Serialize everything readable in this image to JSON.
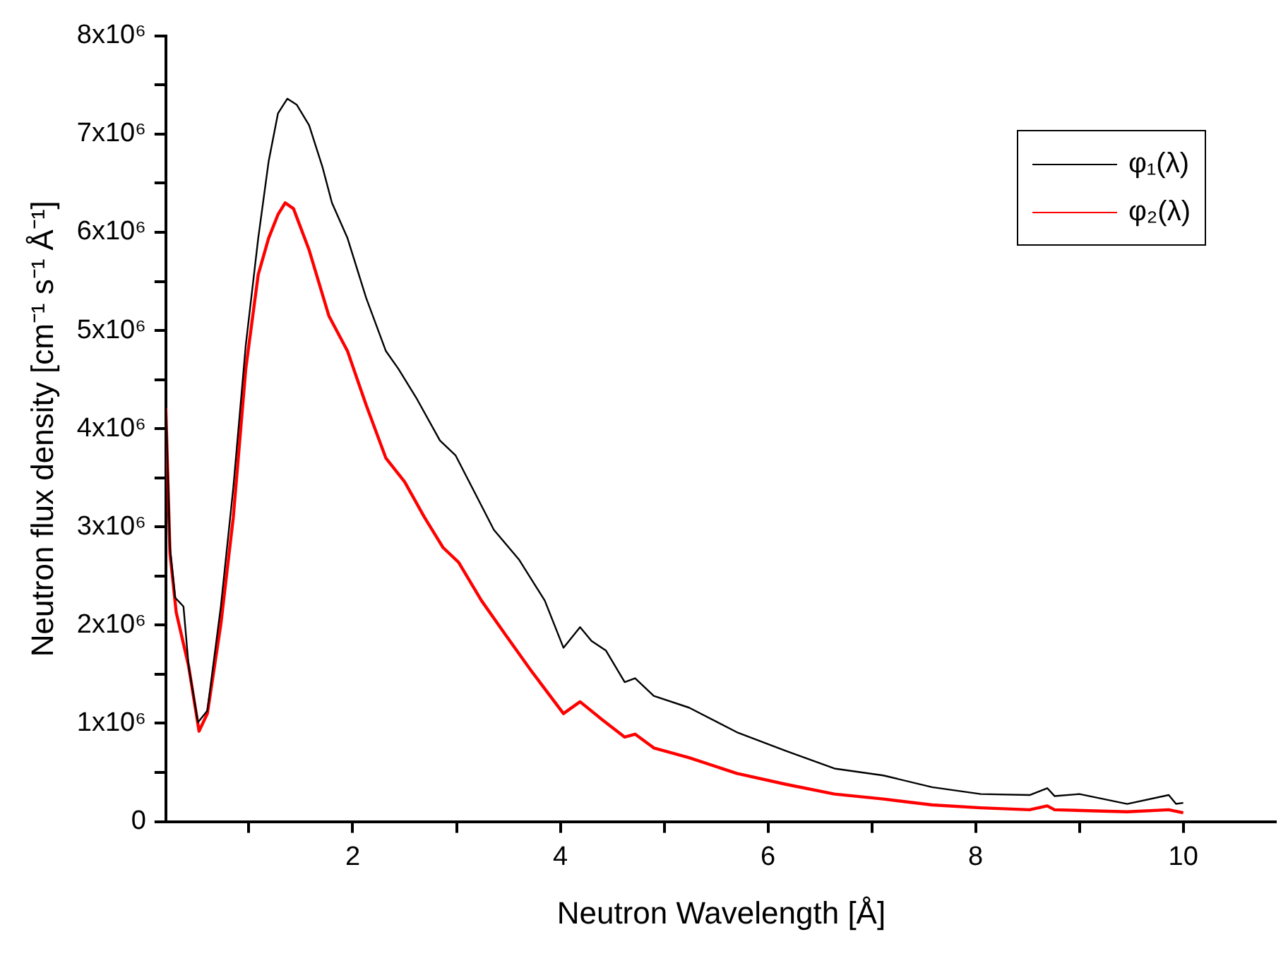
{
  "chart_data": {
    "type": "line",
    "xlabel": "Neutron Wavelength [Å]",
    "ylabel": "Neutron flux density [cm⁻¹ s⁻¹ Å⁻¹]",
    "xlim": [
      0.2,
      10.9
    ],
    "xticks": [
      {
        "value": 1,
        "label": null
      },
      2,
      {
        "value": 3,
        "label": null
      },
      4,
      {
        "value": 5,
        "label": null
      },
      6,
      {
        "value": 7,
        "label": null
      },
      8,
      {
        "value": 9,
        "label": null
      },
      10
    ],
    "ylim": [
      0,
      8000000
    ],
    "yticks": [
      {
        "value": 0,
        "label": "0"
      },
      {
        "value": 500000,
        "label": null
      },
      {
        "value": 1000000,
        "label": "1x10⁶"
      },
      {
        "value": 1500000,
        "label": null
      },
      {
        "value": 2000000,
        "label": "2x10⁶"
      },
      {
        "value": 2500000,
        "label": null
      },
      {
        "value": 3000000,
        "label": "3x10⁶"
      },
      {
        "value": 3500000,
        "label": null
      },
      {
        "value": 4000000,
        "label": "4x10⁶"
      },
      {
        "value": 4500000,
        "label": null
      },
      {
        "value": 5000000,
        "label": "5x10⁶"
      },
      {
        "value": 5500000,
        "label": null
      },
      {
        "value": 6000000,
        "label": "6x10⁶"
      },
      {
        "value": 6500000,
        "label": null
      },
      {
        "value": 7000000,
        "label": "7x10⁶"
      },
      {
        "value": 7500000,
        "label": null
      },
      {
        "value": 8000000,
        "label": "8x10⁶"
      }
    ],
    "grid": false,
    "legend": "top right",
    "marker": "none",
    "line_style": "solid",
    "series": [
      {
        "name": "φ₁(λ)",
        "color": "#000000",
        "x": [
          0.2,
          0.24,
          0.29,
          0.37,
          0.42,
          0.51,
          0.6,
          0.73,
          0.85,
          0.97,
          1.09,
          1.19,
          1.28,
          1.37,
          1.46,
          1.58,
          1.71,
          1.8,
          1.95,
          2.13,
          2.32,
          2.44,
          2.62,
          2.84,
          2.99,
          3.18,
          3.36,
          3.6,
          3.85,
          4.03,
          4.19,
          4.3,
          4.44,
          4.62,
          4.72,
          4.9,
          5.24,
          5.7,
          6.17,
          6.64,
          7.11,
          7.58,
          8.05,
          8.52,
          8.69,
          8.76,
          9.0,
          9.46,
          9.86,
          9.93,
          10.0
        ],
        "values": [
          4240000,
          2790000,
          2280000,
          2190000,
          1580000,
          1010000,
          1130000,
          2190000,
          3400000,
          4850000,
          5940000,
          6720000,
          7210000,
          7360000,
          7300000,
          7090000,
          6660000,
          6300000,
          5940000,
          5330000,
          4790000,
          4610000,
          4300000,
          3880000,
          3730000,
          3340000,
          2970000,
          2670000,
          2250000,
          1770000,
          1980000,
          1840000,
          1740000,
          1420000,
          1460000,
          1280000,
          1160000,
          910000,
          720000,
          540000,
          470000,
          350000,
          280000,
          270000,
          340000,
          260000,
          280000,
          180000,
          270000,
          180000,
          190000
        ]
      },
      {
        "name": "φ₂(λ)",
        "color": "#ff0000",
        "x": [
          0.2,
          0.24,
          0.3,
          0.42,
          0.52,
          0.6,
          0.73,
          0.85,
          0.97,
          1.09,
          1.19,
          1.28,
          1.35,
          1.43,
          1.58,
          1.77,
          1.95,
          2.13,
          2.32,
          2.5,
          2.69,
          2.87,
          3.02,
          3.24,
          3.48,
          3.73,
          4.03,
          4.19,
          4.4,
          4.62,
          4.72,
          4.9,
          5.24,
          5.7,
          6.17,
          6.64,
          7.11,
          7.58,
          8.05,
          8.52,
          8.69,
          8.76,
          9.46,
          9.86,
          10.0
        ],
        "values": [
          4210000,
          2730000,
          2130000,
          1580000,
          920000,
          1100000,
          2010000,
          3100000,
          4610000,
          5570000,
          5940000,
          6180000,
          6300000,
          6240000,
          5820000,
          5150000,
          4790000,
          4240000,
          3700000,
          3460000,
          3100000,
          2790000,
          2640000,
          2250000,
          1890000,
          1520000,
          1100000,
          1220000,
          1040000,
          860000,
          890000,
          750000,
          650000,
          490000,
          380000,
          280000,
          230000,
          170000,
          140000,
          120000,
          160000,
          120000,
          100000,
          120000,
          90000
        ]
      }
    ]
  }
}
